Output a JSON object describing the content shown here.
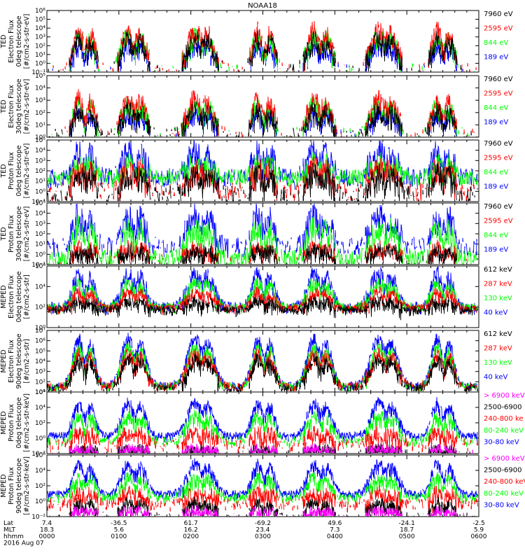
{
  "title": "NOAA18",
  "colors": {
    "black": "#000000",
    "red": "#ff0000",
    "green": "#00ff00",
    "blue": "#0000ff",
    "magenta": "#ff00ff"
  },
  "chart_data": [
    {
      "type": "line",
      "instrument": "TED",
      "ylabel": [
        "TED",
        "Electron Flux",
        "0deg telescope",
        "[#/cm2-s-str-eV]"
      ],
      "ylim": [
        0.1,
        1000000
      ],
      "yticks": [
        "10⁻¹",
        "10⁰",
        "10¹",
        "10²",
        "10³",
        "10⁴",
        "10⁵",
        "10⁶"
      ],
      "series": [
        {
          "name": "7960 eV",
          "color": "black"
        },
        {
          "name": "2595 eV",
          "color": "red"
        },
        {
          "name": "844 eV",
          "color": "green"
        },
        {
          "name": "189 eV",
          "color": "blue"
        }
      ]
    },
    {
      "type": "line",
      "instrument": "TED",
      "ylabel": [
        "TED",
        "Electron Flux",
        "30deg telescope",
        "[#/cm2-s-str-eV]"
      ],
      "ylim": [
        1,
        100000
      ],
      "yticks": [
        "10⁰",
        "10¹",
        "10²",
        "10³",
        "10⁴",
        "10⁵"
      ],
      "series": [
        {
          "name": "7960 eV",
          "color": "black"
        },
        {
          "name": "2595 eV",
          "color": "red"
        },
        {
          "name": "844 eV",
          "color": "green"
        },
        {
          "name": "189 eV",
          "color": "blue"
        }
      ]
    },
    {
      "type": "line",
      "instrument": "TED",
      "ylabel": [
        "TED",
        "Proton Flux",
        "0deg telescope",
        "[#/cm2-s-str-eV]"
      ],
      "ylim": [
        0.1,
        100000
      ],
      "yticks": [
        "10⁻¹",
        "10⁰",
        "10¹",
        "10²",
        "10³",
        "10⁴",
        "10⁵"
      ],
      "series": [
        {
          "name": "7960 eV",
          "color": "black"
        },
        {
          "name": "2595 eV",
          "color": "red"
        },
        {
          "name": "844 eV",
          "color": "green"
        },
        {
          "name": "189 eV",
          "color": "blue"
        }
      ]
    },
    {
      "type": "line",
      "instrument": "TED",
      "ylabel": [
        "TED",
        "Proton Flux",
        "30deg telescope",
        "[#/cm2-s-str-eV]"
      ],
      "ylim": [
        0.1,
        100000
      ],
      "yticks": [
        "10⁻¹",
        "10⁰",
        "10¹",
        "10²",
        "10³",
        "10⁴",
        "10⁵"
      ],
      "series": [
        {
          "name": "7960 eV",
          "color": "black"
        },
        {
          "name": "2595 eV",
          "color": "red"
        },
        {
          "name": "844 eV",
          "color": "green"
        },
        {
          "name": "189 eV",
          "color": "blue"
        }
      ]
    },
    {
      "type": "line",
      "instrument": "MEPED",
      "ylabel": [
        "MEPED",
        "Electron Flux",
        "0deg telescope",
        "[#/cm2-s-str]"
      ],
      "ylim": [
        1,
        1000000
      ],
      "yticks": [
        "10⁰",
        "10²",
        "10⁴",
        "10⁶"
      ],
      "series": [
        {
          "name": "612 keV",
          "color": "black"
        },
        {
          "name": "287 keV",
          "color": "red"
        },
        {
          "name": "130 keV",
          "color": "green"
        },
        {
          "name": "40 keV",
          "color": "blue"
        }
      ]
    },
    {
      "type": "line",
      "instrument": "MEPED",
      "ylabel": [
        "MEPED",
        "Electron Flux",
        "90deg telescope",
        "[#/cm2-s-str]"
      ],
      "ylim": [
        10,
        10000000
      ],
      "yticks": [
        "10¹",
        "10²",
        "10³",
        "10⁴",
        "10⁵",
        "10⁶",
        "10⁷"
      ],
      "series": [
        {
          "name": "612 keV",
          "color": "black"
        },
        {
          "name": "287 keV",
          "color": "red"
        },
        {
          "name": "130 keV",
          "color": "green"
        },
        {
          "name": "40 keV",
          "color": "blue"
        }
      ]
    },
    {
      "type": "line",
      "instrument": "MEPED",
      "ylabel": [
        "MEPED",
        "Proton Flux",
        "0deg telescope",
        "[#/cm2-s-str-keV]"
      ],
      "ylim": [
        0.01,
        1000000
      ],
      "yticks": [
        "10⁻²",
        "10⁰",
        "10²",
        "10⁴",
        "10⁶"
      ],
      "series": [
        {
          "name": "> 6900 keV",
          "color": "magenta"
        },
        {
          "name": "2500-6900",
          "color": "black"
        },
        {
          "name": "240-800 ke",
          "color": "red"
        },
        {
          "name": "80-240 keV",
          "color": "green"
        },
        {
          "name": "30-80 keV",
          "color": "blue"
        }
      ]
    },
    {
      "type": "line",
      "instrument": "MEPED",
      "ylabel": [
        "MEPED",
        "Proton Flux",
        "90deg telescope",
        "[#/cm2-s-str-keV]"
      ],
      "ylim": [
        0.01,
        1000000
      ],
      "yticks": [
        "10⁻²",
        "10⁰",
        "10²",
        "10⁴",
        "10⁶"
      ],
      "series": [
        {
          "name": "> 6900 keV",
          "color": "magenta"
        },
        {
          "name": "2500-6900",
          "color": "black"
        },
        {
          "name": "240-800 keV",
          "color": "red"
        },
        {
          "name": "80-240 keV",
          "color": "green"
        },
        {
          "name": "30-80 keV",
          "color": "blue"
        }
      ]
    }
  ],
  "xaxis": {
    "row_labels": [
      "Lat",
      "MLT",
      "hhmm"
    ],
    "date": "2016 Aug 07",
    "ticks": [
      {
        "lat": "7.4",
        "mlt": "18.3",
        "hhmm": "0000"
      },
      {
        "lat": "-36.5",
        "mlt": "5.6",
        "hhmm": "0100"
      },
      {
        "lat": "61.7",
        "mlt": "16.2",
        "hhmm": "0200"
      },
      {
        "lat": "-69.2",
        "mlt": "23.4",
        "hhmm": "0300"
      },
      {
        "lat": "49.6",
        "mlt": "7.3",
        "hhmm": "0400"
      },
      {
        "lat": "-24.1",
        "mlt": "18.7",
        "hhmm": "0500"
      },
      {
        "lat": "-2.5",
        "mlt": "5.9",
        "hhmm": "0600"
      }
    ]
  }
}
